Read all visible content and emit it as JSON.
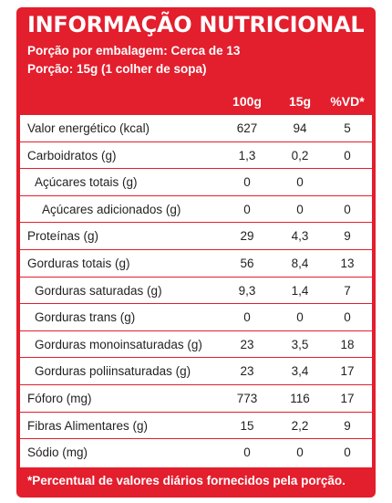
{
  "title": "INFORMAÇÃO NUTRICIONAL",
  "serving_per_package": "Porção por embalagem: Cerca de 13",
  "serving_size": "Porção: 15g (1 colher de sopa)",
  "columns": [
    "100g",
    "15g",
    "%VD*"
  ],
  "rows": [
    {
      "label": "Valor energético (kcal)",
      "v100": "627",
      "v15": "94",
      "vd": "5"
    },
    {
      "label": "Carboidratos (g)",
      "v100": "1,3",
      "v15": "0,2",
      "vd": "0"
    },
    {
      "label": "Açúcares totais (g)",
      "v100": "0",
      "v15": "0",
      "vd": ""
    },
    {
      "label": "Açúcares adicionados (g)",
      "v100": "0",
      "v15": "0",
      "vd": "0"
    },
    {
      "label": "Proteínas (g)",
      "v100": "29",
      "v15": "4,3",
      "vd": "9"
    },
    {
      "label": "Gorduras totais (g)",
      "v100": "56",
      "v15": "8,4",
      "vd": "13"
    },
    {
      "label": "Gorduras saturadas (g)",
      "v100": "9,3",
      "v15": "1,4",
      "vd": "7"
    },
    {
      "label": "Gorduras trans (g)",
      "v100": "0",
      "v15": "0",
      "vd": "0"
    },
    {
      "label": "Gorduras monoinsaturadas (g)",
      "v100": "23",
      "v15": "3,5",
      "vd": "18"
    },
    {
      "label": "Gorduras poliinsaturadas (g)",
      "v100": "23",
      "v15": "3,4",
      "vd": "17"
    },
    {
      "label": "Fóforo (mg)",
      "v100": "773",
      "v15": "116",
      "vd": "17"
    },
    {
      "label": "Fibras Alimentares (g)",
      "v100": "15",
      "v15": "2,2",
      "vd": "9"
    },
    {
      "label": "Sódio (mg)",
      "v100": "0",
      "v15": "0",
      "vd": "0"
    }
  ],
  "footnote": "*Percentual de valores diários fornecidos pela porção.",
  "colors": {
    "accent": "#e31e2d",
    "text": "#231f20",
    "background": "#ffffff"
  }
}
